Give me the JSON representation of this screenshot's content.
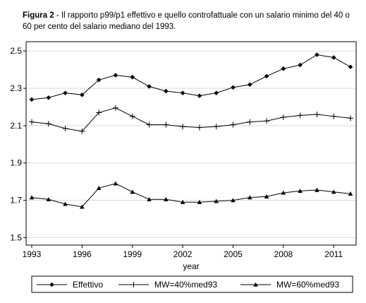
{
  "caption": {
    "label": "Figura 2",
    "text": " - Il rapporto p99/p1 effettivo e quello controfattuale con un salario minimo del 40 o 60 per cento del salario mediano del 1993."
  },
  "chart_data": {
    "type": "line",
    "xlabel": "year",
    "ylabel": "",
    "xlim": [
      1993,
      2012
    ],
    "ylim": [
      1.46,
      2.55
    ],
    "x": [
      1993,
      1994,
      1995,
      1996,
      1997,
      1998,
      1999,
      2000,
      2001,
      2002,
      2003,
      2004,
      2005,
      2006,
      2007,
      2008,
      2009,
      2010,
      2011,
      2012
    ],
    "xticks": [
      1993,
      1996,
      1999,
      2002,
      2005,
      2008,
      2011
    ],
    "xtick_labels": [
      "1993",
      "1996",
      "1999",
      "2002",
      "2005",
      "2008",
      "2011"
    ],
    "yticks": [
      1.5,
      1.7,
      1.9,
      2.1,
      2.3,
      2.5
    ],
    "ytick_labels": [
      "1.5",
      "1.7",
      "1.9",
      "2.1",
      "2.3",
      "2.5"
    ],
    "grid": true,
    "legend_position": "bottom",
    "series": [
      {
        "name": "Effettivo",
        "marker": "diamond",
        "values": [
          2.24,
          2.25,
          2.275,
          2.265,
          2.345,
          2.37,
          2.36,
          2.31,
          2.285,
          2.275,
          2.26,
          2.275,
          2.305,
          2.32,
          2.365,
          2.405,
          2.425,
          2.48,
          2.465,
          2.415
        ]
      },
      {
        "name": "MW=40%med93",
        "marker": "plus",
        "values": [
          2.12,
          2.11,
          2.085,
          2.07,
          2.17,
          2.195,
          2.15,
          2.105,
          2.105,
          2.095,
          2.09,
          2.095,
          2.105,
          2.12,
          2.125,
          2.145,
          2.155,
          2.16,
          2.15,
          2.14
        ]
      },
      {
        "name": "MW=60%med93",
        "marker": "triangle",
        "values": [
          1.715,
          1.705,
          1.68,
          1.665,
          1.765,
          1.79,
          1.745,
          1.705,
          1.705,
          1.69,
          1.69,
          1.695,
          1.7,
          1.715,
          1.72,
          1.74,
          1.75,
          1.755,
          1.745,
          1.735
        ]
      }
    ],
    "colors": {
      "line": "#000000",
      "grid": "#d9d9d9",
      "frame": "#000000"
    }
  }
}
